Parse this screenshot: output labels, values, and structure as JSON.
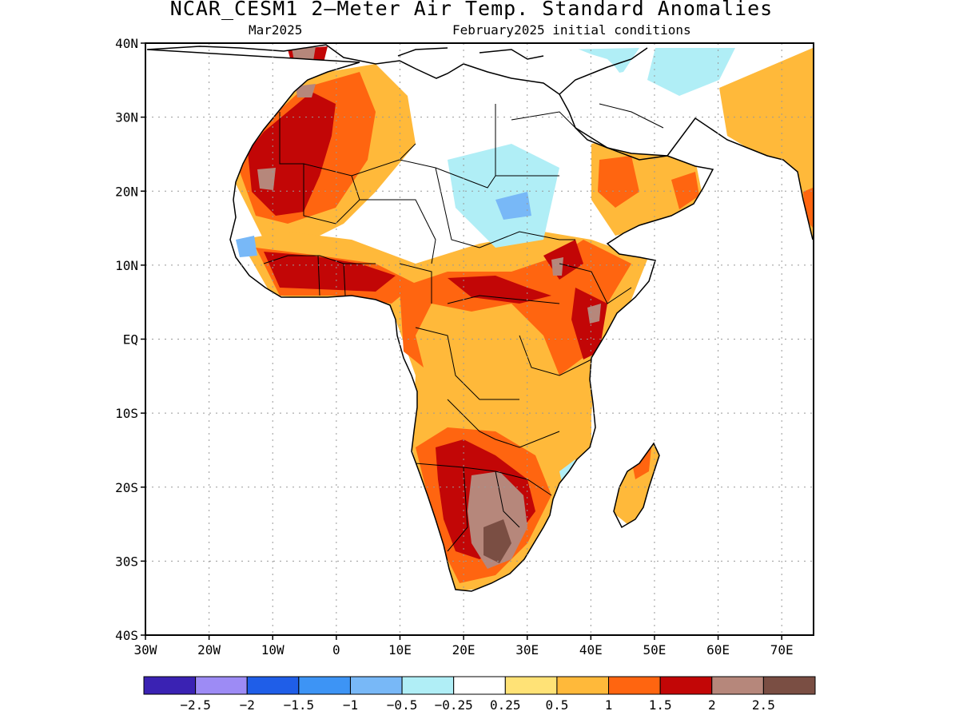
{
  "title": "NCAR_CESM1 2–Meter Air Temp. Standard Anomalies",
  "subtitle_left": "Mar2025",
  "subtitle_right": "February2025 initial conditions",
  "map": {
    "lat_range": [
      -40,
      40
    ],
    "lon_range": [
      -30,
      75
    ],
    "lat_ticks": [
      {
        "value": 40,
        "label": "40N"
      },
      {
        "value": 30,
        "label": "30N"
      },
      {
        "value": 20,
        "label": "20N"
      },
      {
        "value": 10,
        "label": "10N"
      },
      {
        "value": 0,
        "label": "EQ"
      },
      {
        "value": -10,
        "label": "10S"
      },
      {
        "value": -20,
        "label": "20S"
      },
      {
        "value": -30,
        "label": "30S"
      },
      {
        "value": -40,
        "label": "40S"
      }
    ],
    "lon_ticks": [
      {
        "value": -30,
        "label": "30W"
      },
      {
        "value": -20,
        "label": "20W"
      },
      {
        "value": -10,
        "label": "10W"
      },
      {
        "value": 0,
        "label": "0"
      },
      {
        "value": 10,
        "label": "10E"
      },
      {
        "value": 20,
        "label": "20E"
      },
      {
        "value": 30,
        "label": "30E"
      },
      {
        "value": 40,
        "label": "40E"
      },
      {
        "value": 50,
        "label": "50E"
      },
      {
        "value": 60,
        "label": "60E"
      },
      {
        "value": 70,
        "label": "70E"
      }
    ],
    "gridlines": true
  },
  "colorbar": {
    "colors": [
      "#3a22b3",
      "#9d8bf5",
      "#1f5ee8",
      "#3d94f5",
      "#78b8f7",
      "#b0eef6",
      "#ffffff",
      "#ffe276",
      "#ffb93a",
      "#ff6510",
      "#c20606",
      "#b6877b",
      "#7a4e43"
    ],
    "labels": [
      "−2.5",
      "−2",
      "−1.5",
      "−1",
      "−0.5",
      "−0.25",
      "0.25",
      "0.5",
      "1",
      "1.5",
      "2",
      "2.5"
    ]
  }
}
